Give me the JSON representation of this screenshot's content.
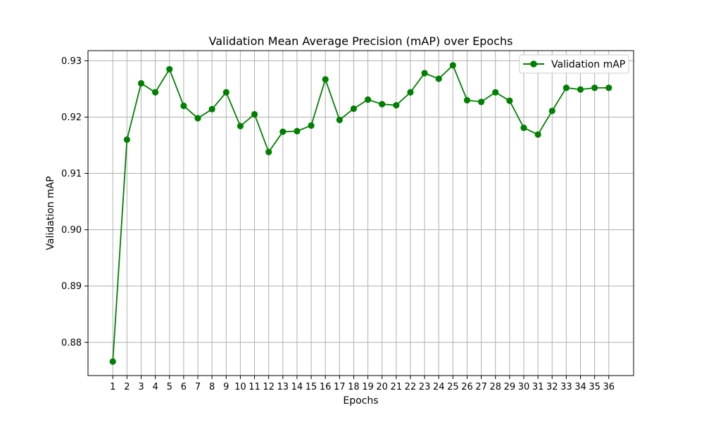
{
  "chart_data": {
    "type": "line",
    "title": "Validation Mean Average Precision (mAP) over Epochs",
    "xlabel": "Epochs",
    "ylabel": "Validation mAP",
    "x": [
      1,
      2,
      3,
      4,
      5,
      6,
      7,
      8,
      9,
      10,
      11,
      12,
      13,
      14,
      15,
      16,
      17,
      18,
      19,
      20,
      21,
      22,
      23,
      24,
      25,
      26,
      27,
      28,
      29,
      30,
      31,
      32,
      33,
      34,
      35,
      36
    ],
    "x_tick_labels": [
      "1",
      "2",
      "3",
      "4",
      "5",
      "6",
      "7",
      "8",
      "9",
      "10",
      "11",
      "12",
      "13",
      "14",
      "15",
      "16",
      "17",
      "18",
      "19",
      "20",
      "21",
      "22",
      "23",
      "24",
      "25",
      "26",
      "27",
      "28",
      "29",
      "30",
      "31",
      "32",
      "33",
      "34",
      "35",
      "36"
    ],
    "y_ticks": [
      0.88,
      0.89,
      0.9,
      0.91,
      0.92,
      0.93
    ],
    "y_tick_labels": [
      "0.88",
      "0.89",
      "0.90",
      "0.91",
      "0.92",
      "0.93"
    ],
    "xlim": [
      -0.75,
      37.75
    ],
    "ylim": [
      0.8741,
      0.9318
    ],
    "grid": true,
    "legend_position": "top-right",
    "series": [
      {
        "name": "Validation mAP",
        "color": "#008000",
        "marker": "circle",
        "values": [
          0.8766,
          0.916,
          0.926,
          0.9244,
          0.9285,
          0.922,
          0.9198,
          0.9214,
          0.9244,
          0.9184,
          0.9205,
          0.9138,
          0.9174,
          0.9175,
          0.9185,
          0.9267,
          0.9195,
          0.9215,
          0.9231,
          0.9223,
          0.9221,
          0.9244,
          0.9278,
          0.9268,
          0.9292,
          0.923,
          0.9227,
          0.9244,
          0.9229,
          0.9181,
          0.9169,
          0.9211,
          0.9252,
          0.9249,
          0.9252,
          0.9252
        ]
      }
    ]
  }
}
